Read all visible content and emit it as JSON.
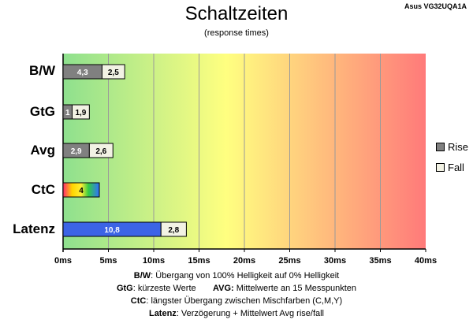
{
  "chart_data": {
    "type": "bar",
    "title": "Schaltzeiten",
    "subtitle": "(response times)",
    "model": "Asus VG32UQA1A",
    "xlim": [
      0,
      40
    ],
    "x_ticks": [
      "0ms",
      "5ms",
      "10ms",
      "15ms",
      "20ms",
      "25ms",
      "30ms",
      "35ms",
      "40ms"
    ],
    "x_tick_values": [
      0,
      5,
      10,
      15,
      20,
      25,
      30,
      35,
      40
    ],
    "categories": [
      "B/W",
      "GtG",
      "Avg",
      "CtC",
      "Latenz"
    ],
    "series": [
      {
        "name": "Rise",
        "color": "#808080",
        "values": [
          4.3,
          1,
          2.9,
          null,
          null
        ],
        "labels": [
          "4,3",
          "1",
          "2,9",
          "",
          ""
        ]
      },
      {
        "name": "Fall",
        "color": "#f2f2e4",
        "values": [
          2.5,
          1.9,
          2.6,
          null,
          2.8
        ],
        "labels": [
          "2,5",
          "1,9",
          "2,6",
          "",
          "2,8"
        ]
      }
    ],
    "ctc": {
      "value": 4,
      "label": "4"
    },
    "latenz_delay": {
      "value": 10.8,
      "label": "10,8",
      "color": "#3c64e6"
    },
    "background_gradient": [
      "#8ee08e",
      "#ffff80",
      "#ff7a7a"
    ],
    "grid": true,
    "legend_position": "right"
  },
  "footnotes": {
    "line1_key": "B/W",
    "line1_text": ":  Übergang von 100% Helligkeit auf 0% Helligkeit",
    "line2_key_a": "GtG",
    "line2_text_a": ": kürzeste  Werte",
    "line2_key_b": "AVG:",
    "line2_text_b": " Mittelwerte  an 15 Messpunkten",
    "line3_key": "CtC",
    "line3_text": ": längster Übergang  zwischen Mischfarben (C,M,Y)",
    "line4_key": "Latenz",
    "line4_text": ": Verzögerung  + Mittelwert Avg rise/fall"
  }
}
